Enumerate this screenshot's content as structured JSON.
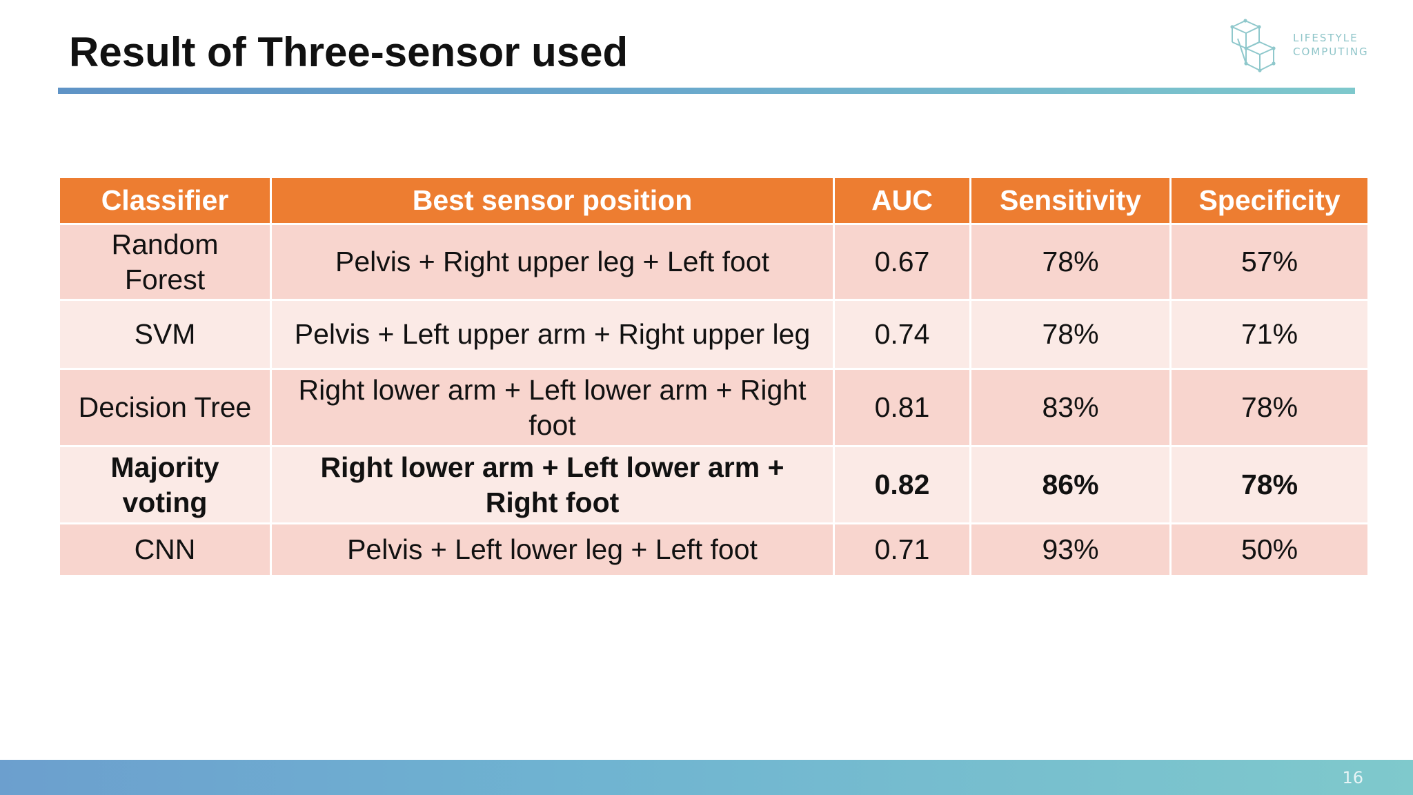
{
  "slide": {
    "title": "Result of Three-sensor used",
    "page_number": "16"
  },
  "logo": {
    "line1": "LIFESTYLE",
    "line2": "COMPUTING",
    "icon": "wireframe-cubes-icon"
  },
  "table": {
    "headers": [
      "Classifier",
      "Best sensor position",
      "AUC",
      "Sensitivity",
      "Specificity"
    ],
    "rows": [
      {
        "classifier": "Random Forest",
        "position": "Pelvis + Right upper leg + Left foot",
        "auc": "0.67",
        "sensitivity": "78%",
        "specificity": "57%"
      },
      {
        "classifier": "SVM",
        "position": "Pelvis + Left upper arm + Right upper leg",
        "auc": "0.74",
        "sensitivity": "78%",
        "specificity": "71%"
      },
      {
        "classifier": "Decision Tree",
        "position": "Right lower arm + Left lower arm + Right foot",
        "auc": "0.81",
        "sensitivity": "83%",
        "specificity": "78%"
      },
      {
        "classifier": "Majority voting",
        "position": "Right lower arm + Left lower arm + Right foot",
        "auc": "0.82",
        "sensitivity": "86%",
        "specificity": "78%"
      },
      {
        "classifier": "CNN",
        "position": "Pelvis + Left lower leg + Left foot",
        "auc": "0.71",
        "sensitivity": "93%",
        "specificity": "50%"
      }
    ]
  },
  "colors": {
    "header": "#ed7d31",
    "row_dark": "#f8d5ce",
    "row_light": "#fbeae6",
    "accent": "#69a7cc"
  }
}
